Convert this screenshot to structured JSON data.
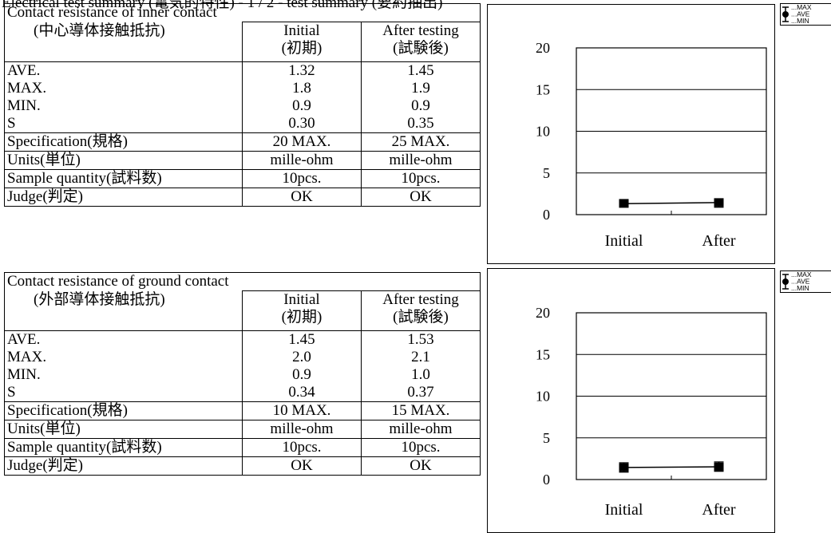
{
  "page_header": "Electrical  test  summary (電気的特性) - 1 / 2 - test summary (要約抽出)",
  "tables": [
    {
      "title": "Contact resistance of inner contact",
      "subtitle": "(中心導体接触抵抗)",
      "col1": [
        "Initial",
        "(初期)"
      ],
      "col2": [
        "After testing",
        "(試験後)"
      ],
      "stats": [
        {
          "label": "AVE.",
          "initial": "1.32",
          "after": "1.45"
        },
        {
          "label": "MAX.",
          "initial": "1.8",
          "after": "1.9"
        },
        {
          "label": "MIN.",
          "initial": "0.9",
          "after": "0.9"
        },
        {
          "label": "S",
          "initial": "0.30",
          "after": "0.35"
        }
      ],
      "rows": [
        {
          "label": "Specification(規格)",
          "initial": "20 MAX.",
          "after": "25 MAX."
        },
        {
          "label": "Units(単位)",
          "initial": "mille-ohm",
          "after": "mille-ohm"
        },
        {
          "label": "Sample quantity(試料数)",
          "initial": "10pcs.",
          "after": "10pcs."
        },
        {
          "label": "Judge(判定)",
          "initial": "OK",
          "after": "OK"
        }
      ]
    },
    {
      "title": "Contact resistance of ground contact",
      "subtitle": "(外部導体接触抵抗)",
      "col1": [
        "Initial",
        "(初期)"
      ],
      "col2": [
        "After testing",
        "(試験後)"
      ],
      "stats": [
        {
          "label": "AVE.",
          "initial": "1.45",
          "after": "1.53"
        },
        {
          "label": "MAX.",
          "initial": "2.0",
          "after": "2.1"
        },
        {
          "label": "MIN.",
          "initial": "0.9",
          "after": "1.0"
        },
        {
          "label": "S",
          "initial": "0.34",
          "after": "0.37"
        }
      ],
      "rows": [
        {
          "label": "Specification(規格)",
          "initial": "10 MAX.",
          "after": "15 MAX."
        },
        {
          "label": "Units(単位)",
          "initial": "mille-ohm",
          "after": "mille-ohm"
        },
        {
          "label": "Sample quantity(試料数)",
          "initial": "10pcs.",
          "after": "10pcs."
        },
        {
          "label": "Judge(判定)",
          "initial": "OK",
          "after": "OK"
        }
      ]
    }
  ],
  "legend": {
    "max": "...MAX",
    "ave": "...AVE",
    "min": "...MIN"
  },
  "chart_data": [
    {
      "type": "line",
      "categories": [
        "Initial",
        "After"
      ],
      "ylim": [
        0,
        20
      ],
      "yticks": [
        0,
        5,
        10,
        15,
        20
      ],
      "grid": true,
      "series": [
        {
          "name": "MAX",
          "values": [
            1.8,
            1.9
          ]
        },
        {
          "name": "AVE",
          "values": [
            1.32,
            1.45
          ]
        },
        {
          "name": "MIN",
          "values": [
            0.9,
            0.9
          ]
        }
      ]
    },
    {
      "type": "line",
      "categories": [
        "Initial",
        "After"
      ],
      "ylim": [
        0,
        20
      ],
      "yticks": [
        0,
        5,
        10,
        15,
        20
      ],
      "grid": true,
      "series": [
        {
          "name": "MAX",
          "values": [
            2.0,
            2.1
          ]
        },
        {
          "name": "AVE",
          "values": [
            1.45,
            1.53
          ]
        },
        {
          "name": "MIN",
          "values": [
            0.9,
            1.0
          ]
        }
      ]
    }
  ],
  "colors": {
    "ink": "#000000",
    "background": "#ffffff"
  }
}
